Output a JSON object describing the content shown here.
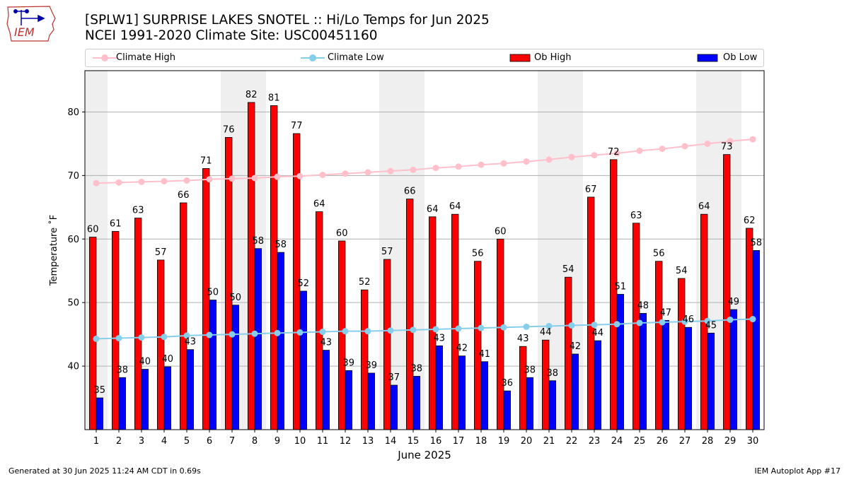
{
  "header": {
    "title_line1": "[SPLW1] SURPRISE LAKES SNOTEL :: Hi/Lo Temps for Jun 2025",
    "title_line2": "NCEI 1991-2020 Climate Site: USC00451160",
    "logo_text": "IEM"
  },
  "footer": {
    "left": "Generated at 30 Jun 2025 11:24 AM CDT in 0.69s",
    "right": "IEM Autoplot App #17"
  },
  "colors": {
    "ob_high": "#ff0000",
    "ob_low": "#0000ff",
    "climate_high": "#ffc0cb",
    "climate_low": "#87ceeb",
    "weekend_band": "#efefef",
    "grid": "#b0b0b0"
  },
  "chart_data": {
    "type": "bar",
    "xlabel": "June 2025",
    "ylabel": "Temperature ˚F",
    "ylim": [
      30,
      86.5
    ],
    "yticks": [
      40,
      50,
      60,
      70,
      80
    ],
    "xlim": [
      0.5,
      30.5
    ],
    "grid": "horizontal",
    "legend_position": "top",
    "categories": [
      1,
      2,
      3,
      4,
      5,
      6,
      7,
      8,
      9,
      10,
      11,
      12,
      13,
      14,
      15,
      16,
      17,
      18,
      19,
      20,
      21,
      22,
      23,
      24,
      25,
      26,
      27,
      28,
      29,
      30
    ],
    "weekend_bands": [
      [
        0.5,
        1.5
      ],
      [
        6.5,
        8.5
      ],
      [
        13.5,
        15.5
      ],
      [
        20.5,
        22.5
      ],
      [
        27.5,
        29.5
      ]
    ],
    "legend": [
      {
        "label": "Climate High",
        "kind": "line",
        "color": "#ffc0cb"
      },
      {
        "label": "Climate Low",
        "kind": "line",
        "color": "#87ceeb"
      },
      {
        "label": "Ob High",
        "kind": "bar",
        "color": "#ff0000"
      },
      {
        "label": "Ob Low",
        "kind": "bar",
        "color": "#0000ff"
      }
    ],
    "series": [
      {
        "name": "Ob High",
        "kind": "bar",
        "values": [
          60.3,
          61.2,
          63.3,
          56.7,
          65.7,
          71.1,
          76.0,
          81.5,
          81.0,
          76.6,
          64.3,
          59.7,
          52.0,
          56.8,
          66.3,
          63.5,
          63.9,
          56.5,
          60.0,
          43.1,
          44.1,
          54.0,
          66.6,
          72.5,
          62.5,
          56.5,
          53.8,
          63.9,
          73.3,
          61.7
        ],
        "labels": [
          "60",
          "61",
          "63",
          "57",
          "66",
          "71",
          "76",
          "82",
          "81",
          "77",
          "64",
          "60",
          "52",
          "57",
          "66",
          "64",
          "64",
          "56",
          "60",
          "43",
          "44",
          "54",
          "67",
          "72",
          "63",
          "56",
          "54",
          "64",
          "73",
          "62"
        ]
      },
      {
        "name": "Ob Low",
        "kind": "bar",
        "values": [
          35.0,
          38.2,
          39.5,
          39.9,
          42.6,
          50.4,
          49.6,
          58.5,
          57.9,
          51.8,
          42.5,
          39.3,
          38.9,
          37.0,
          38.4,
          43.2,
          41.6,
          40.7,
          36.1,
          38.2,
          37.7,
          41.9,
          44.0,
          51.3,
          48.3,
          47.2,
          46.1,
          45.2,
          48.9,
          58.2
        ],
        "labels": [
          "35",
          "38",
          "40",
          "40",
          "43",
          "50",
          "50",
          "58",
          "58",
          "52",
          "43",
          "39",
          "39",
          "37",
          "38",
          "43",
          "42",
          "41",
          "36",
          "38",
          "38",
          "42",
          "44",
          "51",
          "48",
          "47",
          "46",
          "45",
          "49",
          "58"
        ]
      },
      {
        "name": "Climate High",
        "kind": "line",
        "values": [
          68.8,
          68.9,
          69.0,
          69.1,
          69.2,
          69.4,
          69.5,
          69.6,
          69.8,
          69.9,
          70.1,
          70.3,
          70.5,
          70.7,
          70.9,
          71.2,
          71.4,
          71.7,
          71.9,
          72.2,
          72.5,
          72.9,
          73.2,
          73.5,
          73.9,
          74.2,
          74.6,
          75.0,
          75.4,
          75.7
        ]
      },
      {
        "name": "Climate Low",
        "kind": "line",
        "values": [
          44.3,
          44.4,
          44.5,
          44.6,
          44.8,
          44.9,
          45.0,
          45.1,
          45.2,
          45.3,
          45.4,
          45.5,
          45.5,
          45.6,
          45.7,
          45.8,
          45.9,
          46.0,
          46.1,
          46.2,
          46.3,
          46.4,
          46.5,
          46.6,
          46.8,
          46.9,
          47.0,
          47.1,
          47.3,
          47.4
        ]
      }
    ]
  }
}
